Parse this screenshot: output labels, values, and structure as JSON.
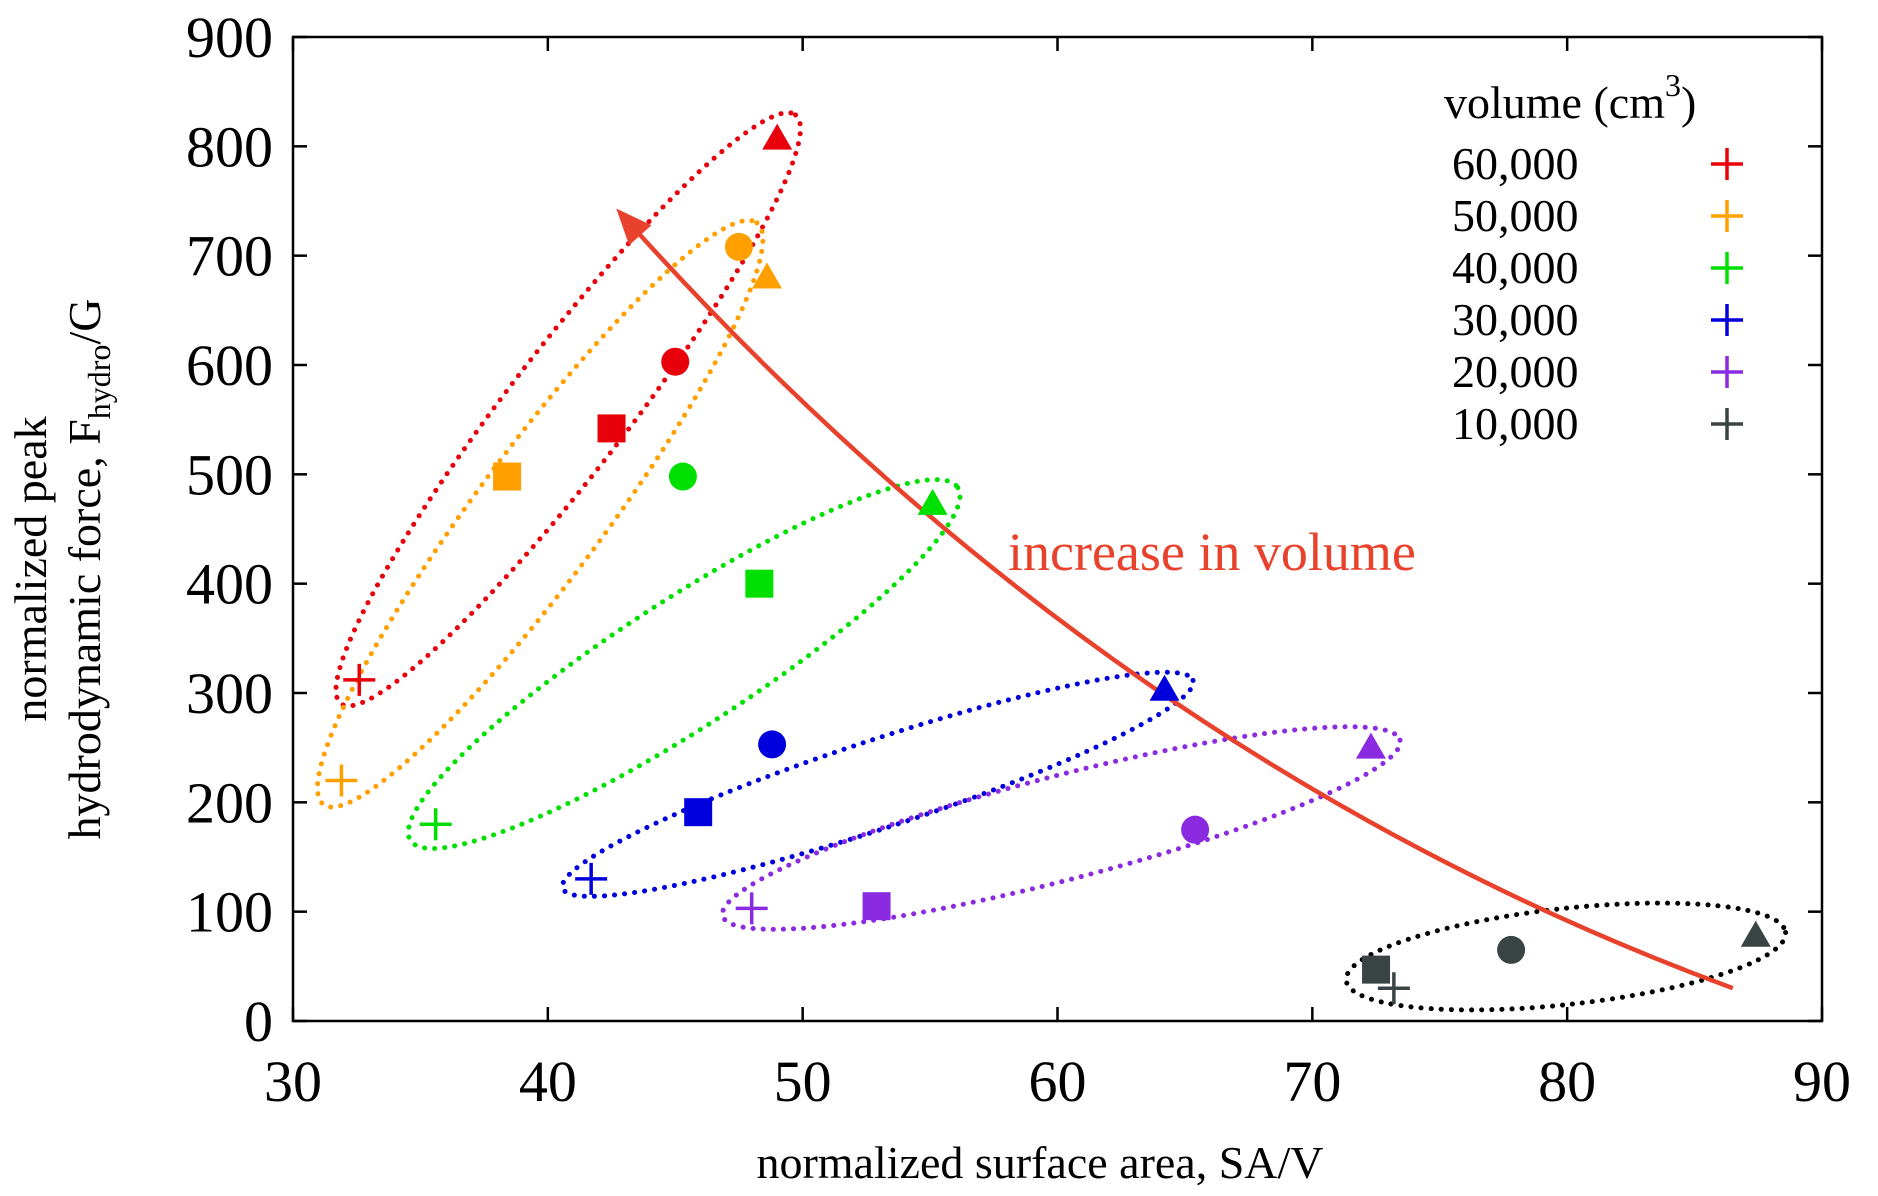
{
  "chart_data": {
    "type": "scatter",
    "xlabel": "normalized surface area, SA/V",
    "ylabel_line1": "normalized peak",
    "ylabel_line2_main": "hydrodynamic force, F",
    "ylabel_line2_sub": "hydro",
    "ylabel_line2_tail": "/G",
    "xlim": [
      30,
      90
    ],
    "ylim": [
      0,
      900
    ],
    "x_ticks": [
      30,
      40,
      50,
      60,
      70,
      80,
      90
    ],
    "y_ticks": [
      0,
      100,
      200,
      300,
      400,
      500,
      600,
      700,
      800,
      900
    ],
    "grid": false,
    "legend": {
      "title_main": "volume (cm",
      "title_sup": "3",
      "title_tail": ")",
      "position": "top-right",
      "entries": [
        {
          "label": "60,000",
          "color": "#e8000b"
        },
        {
          "label": "50,000",
          "color": "#ff9f00"
        },
        {
          "label": "40,000",
          "color": "#00e000"
        },
        {
          "label": "30,000",
          "color": "#0000dd"
        },
        {
          "label": "20,000",
          "color": "#8a2be2"
        },
        {
          "label": "10,000",
          "color": "#3a4444"
        }
      ]
    },
    "annotation": {
      "text": "increase in volume",
      "color": "#e8412c"
    },
    "series": [
      {
        "color": "#e8000b",
        "points": [
          {
            "x": 32.6,
            "y": 312,
            "marker": "plus"
          },
          {
            "x": 42.5,
            "y": 542,
            "marker": "square"
          },
          {
            "x": 45.0,
            "y": 603,
            "marker": "circle"
          },
          {
            "x": 49.0,
            "y": 807,
            "marker": "triangle"
          }
        ]
      },
      {
        "color": "#ff9f00",
        "points": [
          {
            "x": 31.9,
            "y": 220,
            "marker": "plus"
          },
          {
            "x": 38.4,
            "y": 498,
            "marker": "square"
          },
          {
            "x": 47.5,
            "y": 708,
            "marker": "circle"
          },
          {
            "x": 48.6,
            "y": 680,
            "marker": "triangle"
          }
        ]
      },
      {
        "color": "#00e000",
        "points": [
          {
            "x": 35.6,
            "y": 180,
            "marker": "plus"
          },
          {
            "x": 48.3,
            "y": 400,
            "marker": "square"
          },
          {
            "x": 45.3,
            "y": 498,
            "marker": "circle"
          },
          {
            "x": 55.1,
            "y": 473,
            "marker": "triangle"
          }
        ]
      },
      {
        "color": "#0000dd",
        "points": [
          {
            "x": 41.7,
            "y": 130,
            "marker": "plus"
          },
          {
            "x": 45.9,
            "y": 191,
            "marker": "square"
          },
          {
            "x": 48.8,
            "y": 253,
            "marker": "circle"
          },
          {
            "x": 64.2,
            "y": 303,
            "marker": "triangle"
          }
        ]
      },
      {
        "color": "#8a2be2",
        "points": [
          {
            "x": 48.0,
            "y": 103,
            "marker": "plus"
          },
          {
            "x": 52.9,
            "y": 105,
            "marker": "square"
          },
          {
            "x": 65.4,
            "y": 175,
            "marker": "circle"
          },
          {
            "x": 72.3,
            "y": 250,
            "marker": "triangle"
          }
        ]
      },
      {
        "color": "#3a4444",
        "points": [
          {
            "x": 73.2,
            "y": 30,
            "marker": "plus"
          },
          {
            "x": 72.5,
            "y": 47,
            "marker": "square"
          },
          {
            "x": 77.8,
            "y": 65,
            "marker": "circle"
          },
          {
            "x": 87.4,
            "y": 78,
            "marker": "triangle"
          }
        ]
      }
    ]
  }
}
